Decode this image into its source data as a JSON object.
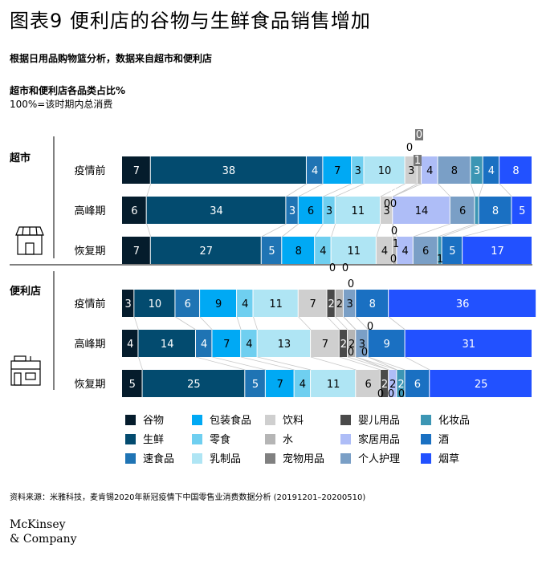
{
  "title": "图表9 便利店的谷物与生鲜食品销售增加",
  "subtitle": "根据日用品购物篮分析，数据来自超市和便利店",
  "source": "资料来源：米雅科技，麦肯锡2020年新冠疫情下中国零售业消费数据分析 (20191201–20200510)",
  "logo": [
    "McKinsey",
    "& Company"
  ],
  "colors": {
    "谷物": "#051c2c",
    "生鲜": "#034b6f",
    "速食品": "#1f74b4",
    "包装食品": "#00a9f4",
    "零食": "#6fcff0",
    "乳制品": "#afe5f4",
    "饮料": "#cfcfcf",
    "水": "#b5b5b5",
    "宠物用品": "#808080",
    "婴儿用品": "#4a4a4a",
    "家居用品": "#aebdf7",
    "个人护理": "#7a9fc6",
    "化妆品": "#3c96b4",
    "酒": "#1a70c2",
    "烟草": "#2251ff"
  },
  "chart_data": {
    "type": "bar",
    "title": "超市和便利店各品类占比%",
    "subtitle": "100%=该时期内总消费",
    "stacked": true,
    "orientation": "horizontal",
    "groups": [
      {
        "name": "超市",
        "categories": [
          "疫情前",
          "高峰期",
          "恢复期"
        ]
      },
      {
        "name": "便利店",
        "categories": [
          "疫情前",
          "高峰期",
          "恢复期"
        ]
      }
    ],
    "categories": [
      "超市·疫情前",
      "超市·高峰期",
      "超市·恢复期",
      "便利店·疫情前",
      "便利店·高峰期",
      "便利店·恢复期"
    ],
    "series": [
      {
        "name": "谷物",
        "values": [
          7,
          6,
          7,
          3,
          4,
          5
        ]
      },
      {
        "name": "生鲜",
        "values": [
          38,
          34,
          27,
          10,
          14,
          25
        ]
      },
      {
        "name": "速食品",
        "values": [
          4,
          3,
          5,
          6,
          4,
          5
        ]
      },
      {
        "name": "包装食品",
        "values": [
          7,
          6,
          8,
          9,
          7,
          7
        ]
      },
      {
        "name": "零食",
        "values": [
          3,
          3,
          4,
          4,
          4,
          4
        ]
      },
      {
        "name": "乳制品",
        "values": [
          10,
          11,
          11,
          11,
          13,
          11
        ]
      },
      {
        "name": "饮料",
        "values": [
          3,
          3,
          4,
          7,
          7,
          6
        ]
      },
      {
        "name": "婴儿用品",
        "values": [
          0,
          0,
          0,
          2,
          2,
          2
        ]
      },
      {
        "name": "水",
        "values": [
          1,
          0,
          1,
          2,
          2,
          0
        ]
      },
      {
        "name": "宠物用品",
        "values": [
          0,
          0,
          0,
          0,
          0,
          0
        ]
      },
      {
        "name": "家居用品",
        "values": [
          4,
          14,
          4,
          0,
          0,
          2
        ]
      },
      {
        "name": "个人护理",
        "values": [
          8,
          6,
          6,
          3,
          3,
          0
        ]
      },
      {
        "name": "化妆品",
        "values": [
          3,
          1,
          1,
          0,
          0,
          2
        ]
      },
      {
        "name": "酒",
        "values": [
          4,
          8,
          5,
          8,
          9,
          6
        ]
      },
      {
        "name": "烟草",
        "values": [
          8,
          5,
          17,
          36,
          31,
          25
        ]
      }
    ],
    "xlim": [
      0,
      100
    ],
    "legend": {
      "position": "bottom",
      "columns": [
        [
          "谷物",
          "生鲜",
          "速食品"
        ],
        [
          "包装食品",
          "零食",
          "乳制品"
        ],
        [
          "饮料",
          "水",
          "宠物用品"
        ],
        [
          "婴儿用品",
          "家居用品",
          "个人护理"
        ],
        [
          "化妆品",
          "酒",
          "烟草"
        ]
      ]
    }
  }
}
